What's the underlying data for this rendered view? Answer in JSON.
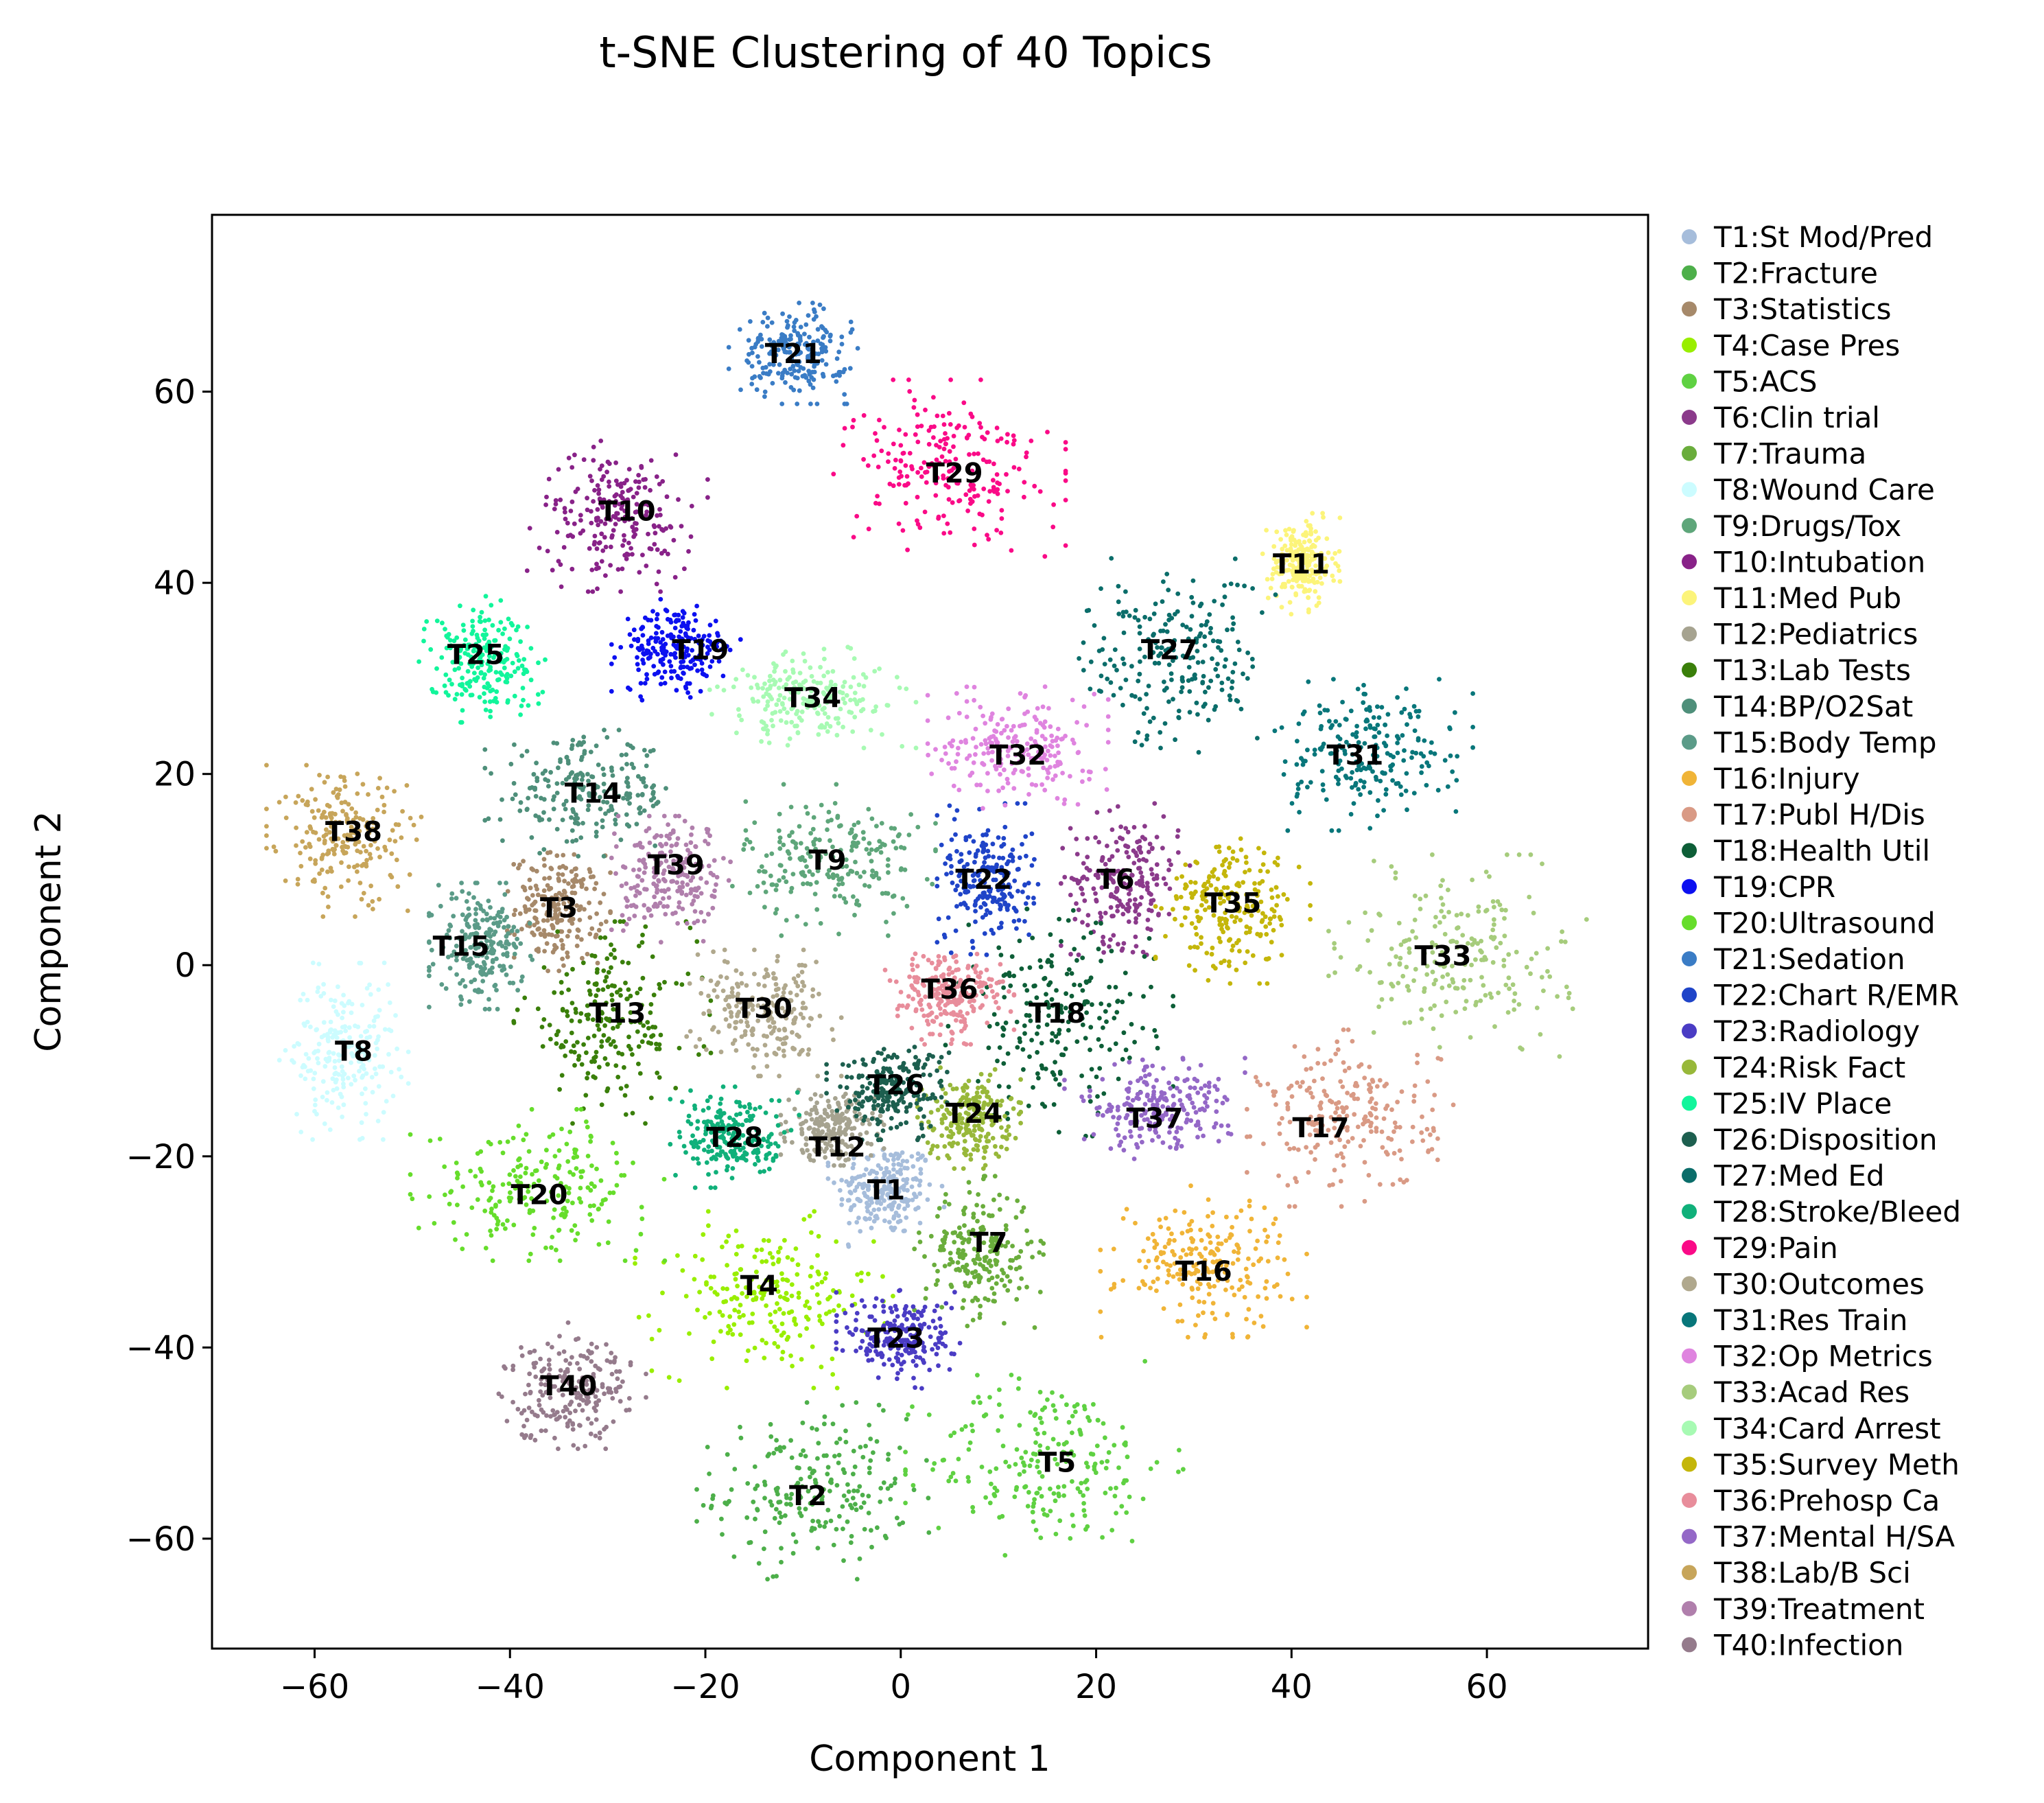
{
  "chart_data": {
    "type": "scatter",
    "title": "t-SNE Clustering of 40 Topics",
    "xlabel": "Component 1",
    "ylabel": "Component 2",
    "xlim": [
      -70.5,
      76.5
    ],
    "ylim": [
      -71.5,
      78.5
    ],
    "xticks": [
      -60,
      -40,
      -20,
      0,
      20,
      40,
      60
    ],
    "yticks": [
      -60,
      -40,
      -20,
      0,
      20,
      40,
      60
    ],
    "xtick_labels": [
      "−60",
      "−40",
      "−20",
      "0",
      "20",
      "40",
      "60"
    ],
    "ytick_labels": [
      "−60",
      "−40",
      "−20",
      "0",
      "20",
      "40",
      "60"
    ],
    "grid": false,
    "legend_position": "outside-right",
    "series": [
      {
        "id": "T1",
        "name": "T1:St Mod/Pred",
        "color": "#a6bddb",
        "center": [
          -1.5,
          -23.5
        ],
        "spread": [
          4.5,
          4.5
        ]
      },
      {
        "id": "T2",
        "name": "T2:Fracture",
        "color": "#4daf4a",
        "center": [
          -9,
          -55
        ],
        "spread": [
          9,
          7
        ]
      },
      {
        "id": "T3",
        "name": "T3:Statistics",
        "color": "#a6896a",
        "center": [
          -35,
          6
        ],
        "spread": [
          4,
          5
        ]
      },
      {
        "id": "T4",
        "name": "T4:Case Pres",
        "color": "#99ee00",
        "center": [
          -14,
          -35
        ],
        "spread": [
          10,
          7
        ]
      },
      {
        "id": "T5",
        "name": "T5:ACS",
        "color": "#5fd142",
        "center": [
          15,
          -52
        ],
        "spread": [
          11,
          8
        ]
      },
      {
        "id": "T6",
        "name": "T6:Clin trial",
        "color": "#8b3a8b",
        "center": [
          23,
          9
        ],
        "spread": [
          5,
          6
        ]
      },
      {
        "id": "T7",
        "name": "T7:Trauma",
        "color": "#6aad3c",
        "center": [
          8,
          -30
        ],
        "spread": [
          5,
          6
        ]
      },
      {
        "id": "T8",
        "name": "T8:Wound Care",
        "color": "#ccfcff",
        "center": [
          -57,
          -9
        ],
        "spread": [
          5,
          7
        ]
      },
      {
        "id": "T9",
        "name": "T9:Drugs/Tox",
        "color": "#5ea67a",
        "center": [
          -7,
          11
        ],
        "spread": [
          8,
          6
        ]
      },
      {
        "id": "T10",
        "name": "T10:Intubation",
        "color": "#882288",
        "center": [
          -29,
          47
        ],
        "spread": [
          7,
          6
        ]
      },
      {
        "id": "T11",
        "name": "T11:Med Pub",
        "color": "#fcf47a",
        "center": [
          41,
          42
        ],
        "spread": [
          3,
          4
        ]
      },
      {
        "id": "T12",
        "name": "T12:Pediatrics",
        "color": "#a6a390",
        "center": [
          -7,
          -17
        ],
        "spread": [
          4,
          3
        ]
      },
      {
        "id": "T13",
        "name": "T13:Lab Tests",
        "color": "#3a7f0a",
        "center": [
          -30,
          -6
        ],
        "spread": [
          8,
          8
        ]
      },
      {
        "id": "T14",
        "name": "T14:BP/O2Sat",
        "color": "#4e8f7a",
        "center": [
          -32,
          18
        ],
        "spread": [
          8,
          5
        ]
      },
      {
        "id": "T15",
        "name": "T15:Body Temp",
        "color": "#5b9b88",
        "center": [
          -43,
          2
        ],
        "spread": [
          4,
          5
        ]
      },
      {
        "id": "T16",
        "name": "T16:Injury",
        "color": "#f0b437",
        "center": [
          31,
          -31
        ],
        "spread": [
          8,
          6
        ]
      },
      {
        "id": "T17",
        "name": "T17:Publ H/Dis",
        "color": "#d99a85",
        "center": [
          46,
          -16
        ],
        "spread": [
          8,
          7
        ]
      },
      {
        "id": "T18",
        "name": "T18:Health Util",
        "color": "#0d5e37",
        "center": [
          16,
          -6
        ],
        "spread": [
          9,
          9
        ]
      },
      {
        "id": "T19",
        "name": "T19:CPR",
        "color": "#0c10f0",
        "center": [
          -23,
          33
        ],
        "spread": [
          5,
          4
        ]
      },
      {
        "id": "T20",
        "name": "T20:Ultrasound",
        "color": "#66dd2b",
        "center": [
          -37,
          -23
        ],
        "spread": [
          10,
          6
        ]
      },
      {
        "id": "T21",
        "name": "T21:Sedation",
        "color": "#3a7cc5",
        "center": [
          -11,
          64
        ],
        "spread": [
          5,
          4
        ]
      },
      {
        "id": "T22",
        "name": "T22:Chart R/EMR",
        "color": "#1f44c8",
        "center": [
          9,
          9
        ],
        "spread": [
          4,
          6
        ]
      },
      {
        "id": "T23",
        "name": "T23:Radiology",
        "color": "#4a3cc4",
        "center": [
          0,
          -39
        ],
        "spread": [
          5,
          4
        ]
      },
      {
        "id": "T24",
        "name": "T24:Risk Fact",
        "color": "#98b83a",
        "center": [
          7,
          -16
        ],
        "spread": [
          4,
          4
        ]
      },
      {
        "id": "T25",
        "name": "T25:IV Place",
        "color": "#12f59b",
        "center": [
          -43,
          32
        ],
        "spread": [
          5,
          5
        ]
      },
      {
        "id": "T26",
        "name": "T26:Disposition",
        "color": "#1d5f4f",
        "center": [
          -1,
          -13
        ],
        "spread": [
          5,
          4
        ]
      },
      {
        "id": "T27",
        "name": "T27:Med Ed",
        "color": "#0b6d6a",
        "center": [
          28,
          32
        ],
        "spread": [
          8,
          8
        ]
      },
      {
        "id": "T28",
        "name": "T28:Stroke/Bleed",
        "color": "#10b07a",
        "center": [
          -17,
          -18
        ],
        "spread": [
          5,
          4
        ]
      },
      {
        "id": "T29",
        "name": "T29:Pain",
        "color": "#fa0a87",
        "center": [
          5,
          52
        ],
        "spread": [
          9,
          7
        ]
      },
      {
        "id": "T30",
        "name": "T30:Outcomes",
        "color": "#b0a88d",
        "center": [
          -14,
          -5
        ],
        "spread": [
          6,
          5
        ]
      },
      {
        "id": "T31",
        "name": "T31:Res Train",
        "color": "#08767a",
        "center": [
          48,
          22
        ],
        "spread": [
          8,
          6
        ]
      },
      {
        "id": "T32",
        "name": "T32:Op Metrics",
        "color": "#df84df",
        "center": [
          12,
          23
        ],
        "spread": [
          7,
          5
        ]
      },
      {
        "id": "T33",
        "name": "T33:Acad Res",
        "color": "#a6cc7c",
        "center": [
          57,
          1
        ],
        "spread": [
          10,
          8
        ]
      },
      {
        "id": "T34",
        "name": "T34:Card Arrest",
        "color": "#a7fab3",
        "center": [
          -9,
          28
        ],
        "spread": [
          8,
          4
        ]
      },
      {
        "id": "T35",
        "name": "T35:Survey Meth",
        "color": "#c4b60a",
        "center": [
          34,
          6
        ],
        "spread": [
          6,
          6
        ]
      },
      {
        "id": "T36",
        "name": "T36:Prehosp Ca",
        "color": "#e88d9b",
        "center": [
          5,
          -3
        ],
        "spread": [
          5,
          4
        ]
      },
      {
        "id": "T37",
        "name": "T37:Mental H/SA",
        "color": "#9468c7",
        "center": [
          26,
          -15
        ],
        "spread": [
          7,
          4
        ]
      },
      {
        "id": "T38",
        "name": "T38:Lab/B Sci",
        "color": "#c7a55a",
        "center": [
          -57,
          13
        ],
        "spread": [
          6,
          6
        ]
      },
      {
        "id": "T39",
        "name": "T39:Treatment",
        "color": "#b07fac",
        "center": [
          -23,
          9
        ],
        "spread": [
          5,
          5
        ]
      },
      {
        "id": "T40",
        "name": "T40:Infection",
        "color": "#957b8c",
        "center": [
          -34,
          -44
        ],
        "spread": [
          6,
          5
        ]
      }
    ],
    "cluster_labels": [
      {
        "text": "T1",
        "x": -1.5,
        "y": -23.5
      },
      {
        "text": "T2",
        "x": -9.5,
        "y": -55.5
      },
      {
        "text": "T3",
        "x": -35,
        "y": 6
      },
      {
        "text": "T4",
        "x": -14.5,
        "y": -33.5
      },
      {
        "text": "T5",
        "x": 16,
        "y": -52
      },
      {
        "text": "T6",
        "x": 22,
        "y": 9
      },
      {
        "text": "T7",
        "x": 9,
        "y": -29
      },
      {
        "text": "T8",
        "x": -56,
        "y": -9
      },
      {
        "text": "T9",
        "x": -7.5,
        "y": 11
      },
      {
        "text": "T10",
        "x": -28,
        "y": 47.5
      },
      {
        "text": "T11",
        "x": 41,
        "y": 42
      },
      {
        "text": "T12",
        "x": -6.5,
        "y": -19
      },
      {
        "text": "T13",
        "x": -29,
        "y": -5
      },
      {
        "text": "T14",
        "x": -31.5,
        "y": 18
      },
      {
        "text": "T15",
        "x": -45,
        "y": 2
      },
      {
        "text": "T16",
        "x": 31,
        "y": -32
      },
      {
        "text": "T17",
        "x": 43,
        "y": -17
      },
      {
        "text": "T18",
        "x": 16,
        "y": -5
      },
      {
        "text": "T19",
        "x": -20.5,
        "y": 33
      },
      {
        "text": "T20",
        "x": -37,
        "y": -24
      },
      {
        "text": "T21",
        "x": -11,
        "y": 64
      },
      {
        "text": "T22",
        "x": 8.5,
        "y": 9
      },
      {
        "text": "T23",
        "x": -0.5,
        "y": -39
      },
      {
        "text": "T24",
        "x": 7.5,
        "y": -15.5
      },
      {
        "text": "T25",
        "x": -43.5,
        "y": 32.5
      },
      {
        "text": "T26",
        "x": -0.5,
        "y": -12.5
      },
      {
        "text": "T27",
        "x": 27.5,
        "y": 33
      },
      {
        "text": "T28",
        "x": -17,
        "y": -18
      },
      {
        "text": "T29",
        "x": 5.5,
        "y": 51.5
      },
      {
        "text": "T30",
        "x": -14,
        "y": -4.5
      },
      {
        "text": "T31",
        "x": 46.5,
        "y": 22
      },
      {
        "text": "T32",
        "x": 12,
        "y": 22
      },
      {
        "text": "T33",
        "x": 55.5,
        "y": 1
      },
      {
        "text": "T34",
        "x": -9,
        "y": 28
      },
      {
        "text": "T35",
        "x": 34,
        "y": 6.5
      },
      {
        "text": "T36",
        "x": 5,
        "y": -2.5
      },
      {
        "text": "T37",
        "x": 26,
        "y": -16
      },
      {
        "text": "T38",
        "x": -56,
        "y": 14
      },
      {
        "text": "T39",
        "x": -23,
        "y": 10.5
      },
      {
        "text": "T40",
        "x": -34,
        "y": -44
      }
    ]
  }
}
